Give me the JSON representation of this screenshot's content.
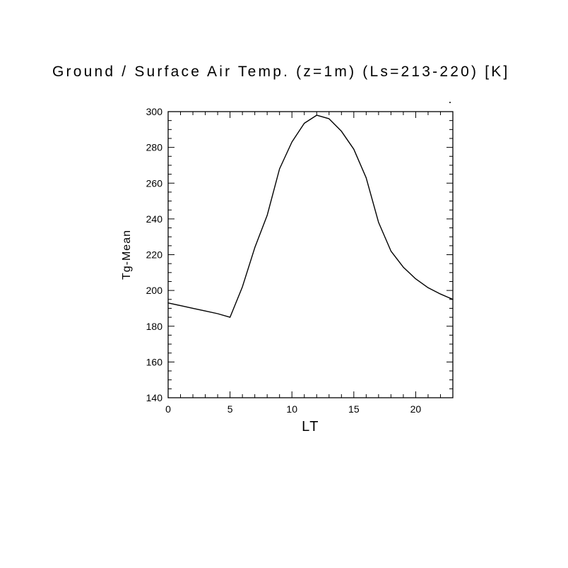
{
  "page": {
    "background": "#ffffff"
  },
  "chart_data": {
    "type": "line",
    "title": "Ground / Surface Air Temp. (z=1m) (Ls=213-220) [K]",
    "xlabel": "LT",
    "ylabel": "Tg-Mean",
    "x": [
      0,
      1,
      2,
      3,
      4,
      5,
      6,
      7,
      8,
      9,
      10,
      11,
      12,
      13,
      14,
      15,
      16,
      17,
      18,
      19,
      20,
      21,
      22,
      23
    ],
    "y": [
      193,
      191.5,
      190,
      188.5,
      187,
      185,
      202,
      224,
      242,
      268,
      283,
      293.5,
      298,
      296,
      289,
      279,
      263,
      238,
      222,
      213,
      206.5,
      201.5,
      198,
      195
    ],
    "xlim": [
      0,
      23
    ],
    "ylim": [
      140,
      300
    ],
    "xticks": [
      0,
      5,
      10,
      15,
      20
    ],
    "yticks": [
      140,
      160,
      180,
      200,
      220,
      240,
      260,
      280,
      300
    ],
    "x_minor_step": 1,
    "y_minor_step": 5,
    "line_color": "#000000",
    "frame_color": "#000000",
    "grid": false,
    "legend": "none"
  }
}
